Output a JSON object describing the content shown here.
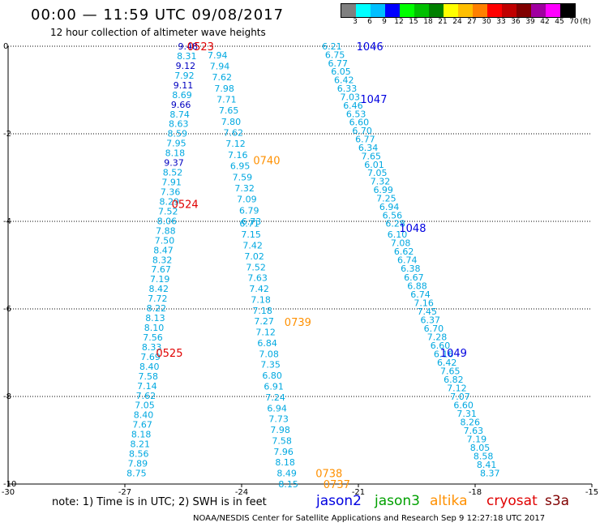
{
  "header": {
    "title": "00:00 — 11:59 UTC 09/08/2017",
    "subtitle": "12 hour collection of altimeter wave heights"
  },
  "legend": {
    "unit": "(ft)",
    "labels": [
      "3",
      "6",
      "9",
      "12",
      "15",
      "18",
      "21",
      "24",
      "27",
      "30",
      "33",
      "36",
      "39",
      "42",
      "45",
      "70"
    ],
    "colors": [
      "#808080",
      "#00ffff",
      "#00bfff",
      "#0000ff",
      "#00ff00",
      "#00c000",
      "#008000",
      "#ffff00",
      "#ffbf00",
      "#ff8000",
      "#ff0000",
      "#c00000",
      "#800000",
      "#a000a0",
      "#ff00ff",
      "#000000"
    ]
  },
  "footer": {
    "note": "note: 1) Time is in UTC; 2) SWH is in feet",
    "satellites": [
      {
        "name": "jason2",
        "color": "#0000e0"
      },
      {
        "name": "jason3",
        "color": "#00a000"
      },
      {
        "name": "altika",
        "color": "#ff9000"
      },
      {
        "name": "cryosat",
        "color": "#e00000"
      },
      {
        "name": "s3a",
        "color": "#800000"
      }
    ],
    "credit": "NOAA/NESDIS Center for Satellite Applications and Research   Sep  9 12:27:18 UTC 2017"
  },
  "chart_data": {
    "type": "scatter",
    "xlim": [
      -30,
      -15
    ],
    "ylim": [
      -10,
      0
    ],
    "xticks": [
      "-30",
      "-27",
      "-24",
      "-21",
      "-18",
      "-15"
    ],
    "yticks": [
      "0",
      "-2",
      "-4",
      "-6",
      "-8",
      "-10"
    ],
    "colors": {
      "light": "#00a8e0",
      "dark": "#0000c0"
    },
    "tracks": [
      {
        "p0": [
          -25.38,
          0
        ],
        "p1": [
          -26.7,
          -9.75
        ],
        "vals": [
          "9.48",
          "8.31",
          "9.12",
          "7.92",
          "9.11",
          "8.69",
          "9.66",
          "8.74",
          "8.63",
          "8.59",
          "7.95",
          "8.18",
          "9.37",
          "8.52",
          "7.91",
          "7.36",
          "8.29",
          "7.52",
          "8.06",
          "7.88",
          "7.50",
          "8.47",
          "8.32",
          "7.67",
          "7.19",
          "8.42",
          "7.72",
          "8.22",
          "8.13",
          "8.10",
          "7.56",
          "8.33",
          "7.69",
          "8.40",
          "7.58",
          "7.14",
          "7.62",
          "7.05",
          "8.40",
          "7.67",
          "8.18",
          "8.21",
          "8.56",
          "7.89",
          "8.75"
        ],
        "dark": [
          0,
          2,
          4,
          6,
          12
        ]
      },
      {
        "p0": [
          -24.62,
          -0.2
        ],
        "p1": [
          -23.75,
          -4.0
        ],
        "vals": [
          "7.94",
          "7.94",
          "7.62",
          "7.98",
          "7.71",
          "7.65",
          "7.80",
          "7.62",
          "7.12",
          "7.16",
          "6.95",
          "7.59",
          "7.32",
          "7.09",
          "6.79",
          "6.73"
        ],
        "dark": []
      },
      {
        "p0": [
          -23.8,
          -4.05
        ],
        "p1": [
          -22.8,
          -10.0
        ],
        "vals": [
          "6.71",
          "7.15",
          "7.42",
          "7.02",
          "7.52",
          "7.63",
          "7.42",
          "7.18",
          "7.18",
          "7.27",
          "7.12",
          "6.84",
          "7.08",
          "7.35",
          "6.80",
          "6.91",
          "7.24",
          "6.94",
          "7.73",
          "7.98",
          "7.58",
          "7.96",
          "8.18",
          "8.49",
          "8.15"
        ],
        "dark": []
      },
      {
        "p0": [
          -21.68,
          0
        ],
        "p1": [
          -20.05,
          -4.05
        ],
        "vals": [
          "6.21",
          "6.75",
          "6.77",
          "6.05",
          "6.42",
          "6.33",
          "7.03",
          "6.46",
          "6.53",
          "6.60",
          "6.70",
          "6.77",
          "6.34",
          "7.65",
          "6.01",
          "7.05",
          "7.32",
          "6.99",
          "7.25",
          "6.94",
          "6.56",
          "6.28"
        ],
        "dark": []
      },
      {
        "p0": [
          -20.0,
          -4.3
        ],
        "p1": [
          -17.62,
          -9.75
        ],
        "vals": [
          "6.10",
          "7.08",
          "6.62",
          "6.74",
          "6.38",
          "6.67",
          "6.88",
          "6.74",
          "7.16",
          "7.45",
          "6.37",
          "6.70",
          "7.28",
          "6.60",
          "6.16",
          "6.42",
          "7.65",
          "6.82",
          "7.12",
          "7.07",
          "6.60",
          "7.31",
          "8.26",
          "7.63",
          "7.19",
          "8.05",
          "8.58",
          "8.41",
          "8.37"
        ],
        "dark": []
      }
    ],
    "annotations": [
      {
        "text": "0523",
        "x": -25.4,
        "y": 0,
        "sat": "cryosat"
      },
      {
        "text": "0524",
        "x": -25.8,
        "y": -3.6,
        "sat": "cryosat"
      },
      {
        "text": "0525",
        "x": -26.2,
        "y": -7.0,
        "sat": "cryosat"
      },
      {
        "text": "0740",
        "x": -23.7,
        "y": -2.6,
        "sat": "altika"
      },
      {
        "text": "0739",
        "x": -22.9,
        "y": -6.3,
        "sat": "altika"
      },
      {
        "text": "0738",
        "x": -22.1,
        "y": -9.75,
        "sat": "altika"
      },
      {
        "text": "0737",
        "x": -21.9,
        "y": -10.0,
        "sat": "altika"
      },
      {
        "text": "1046",
        "x": -21.05,
        "y": 0,
        "sat": "jason2"
      },
      {
        "text": "1047",
        "x": -20.95,
        "y": -1.2,
        "sat": "jason2"
      },
      {
        "text": "1048",
        "x": -19.95,
        "y": -4.15,
        "sat": "jason2"
      },
      {
        "text": "1049",
        "x": -18.9,
        "y": -7.0,
        "sat": "jason2"
      }
    ]
  }
}
